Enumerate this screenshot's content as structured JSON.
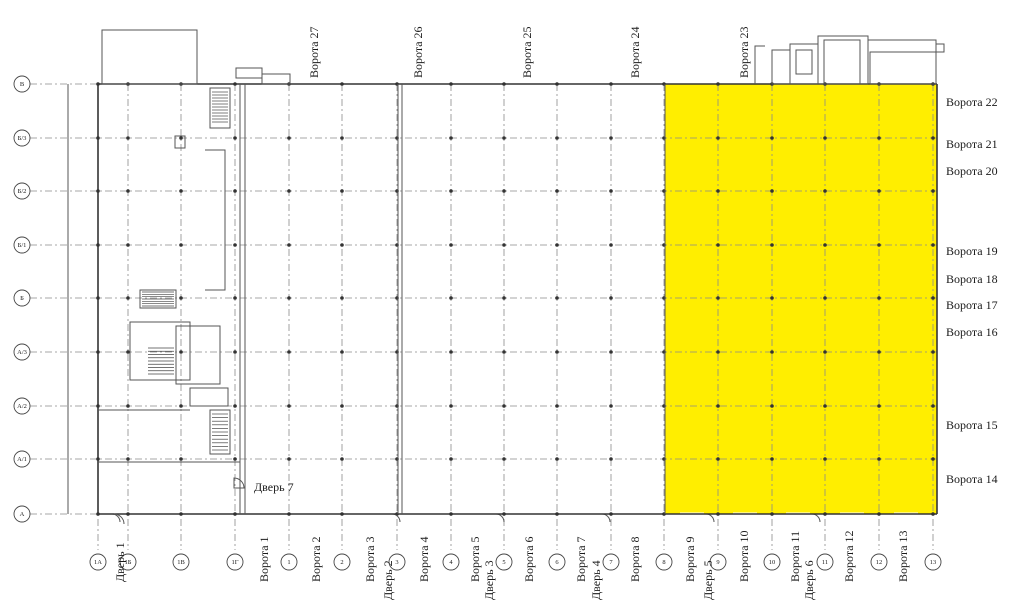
{
  "plan": {
    "highlight_color": "#ffee00",
    "row_axes": [
      {
        "label": "В"
      },
      {
        "label": "Б/3"
      },
      {
        "label": "Б/2"
      },
      {
        "label": "Б/1"
      },
      {
        "label": "Б"
      },
      {
        "label": "А/3"
      },
      {
        "label": "А/2"
      },
      {
        "label": "А/1"
      },
      {
        "label": "А"
      }
    ],
    "column_axes": [
      {
        "label": "1А"
      },
      {
        "label": "1Б"
      },
      {
        "label": "1В"
      },
      {
        "label": "1Г"
      },
      {
        "label": "1"
      },
      {
        "label": "2"
      },
      {
        "label": "3"
      },
      {
        "label": "4"
      },
      {
        "label": "5"
      },
      {
        "label": "6"
      },
      {
        "label": "7"
      },
      {
        "label": "8"
      },
      {
        "label": "9"
      },
      {
        "label": "10"
      },
      {
        "label": "11"
      },
      {
        "label": "12"
      },
      {
        "label": "13"
      }
    ],
    "top_gates": [
      {
        "label": "Ворота 27"
      },
      {
        "label": "Ворота 26"
      },
      {
        "label": "Ворота 25"
      },
      {
        "label": "Ворота 24"
      },
      {
        "label": "Ворота 23"
      }
    ],
    "right_gates": [
      {
        "label": "Ворота 22"
      },
      {
        "label": "Ворота 21"
      },
      {
        "label": "Ворота 20"
      },
      {
        "label": "Ворота 19"
      },
      {
        "label": "Ворота 18"
      },
      {
        "label": "Ворота 17"
      },
      {
        "label": "Ворота 16"
      },
      {
        "label": "Ворота 15"
      },
      {
        "label": "Ворота 14"
      }
    ],
    "bottom_labels": [
      {
        "label": "Дверь 1"
      },
      {
        "label": "Ворота 1"
      },
      {
        "label": "Ворота 2"
      },
      {
        "label": "Ворота 3"
      },
      {
        "label": "Дверь 2"
      },
      {
        "label": "Ворота 4"
      },
      {
        "label": "Ворота 5"
      },
      {
        "label": "Дверь 3"
      },
      {
        "label": "Ворота 6"
      },
      {
        "label": "Ворота 7"
      },
      {
        "label": "Дверь 4"
      },
      {
        "label": "Ворота 8"
      },
      {
        "label": "Ворота 9"
      },
      {
        "label": "Дверь 5"
      },
      {
        "label": "Ворота 10"
      },
      {
        "label": "Ворота 11"
      },
      {
        "label": "Дверь 6"
      },
      {
        "label": "Ворота 12"
      },
      {
        "label": "Ворота 13"
      }
    ],
    "door_7": {
      "label": "Дверь 7"
    }
  }
}
